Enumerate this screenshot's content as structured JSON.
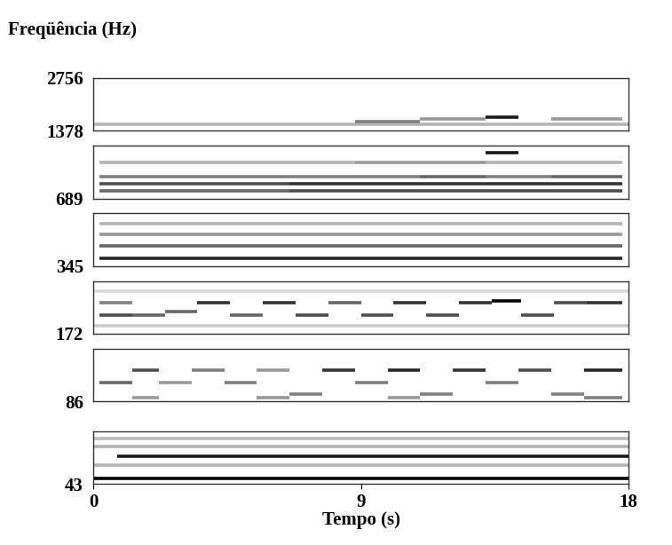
{
  "chart_data": {
    "type": "spectrogram",
    "y_label": "Freqüência (Hz)",
    "x_label": "Tempo (s)",
    "log": "y",
    "xlim": [
      0,
      18
    ],
    "xticks": [
      0,
      9,
      18
    ],
    "panels": [
      {
        "ylim": [
          1378,
          2756
        ],
        "yticks": [
          1378,
          2756
        ],
        "events": [
          [
            0,
            18,
            1500,
            0.3
          ],
          [
            8.8,
            11,
            1550,
            0.5
          ],
          [
            11,
            13.2,
            1600,
            0.4
          ],
          [
            13.2,
            14.3,
            1650,
            0.9
          ],
          [
            15.4,
            17.8,
            1600,
            0.4
          ]
        ]
      },
      {
        "ylim": [
          689,
          1378
        ],
        "yticks": [
          689
        ],
        "events": [
          [
            0.2,
            2.2,
            760,
            0.6
          ],
          [
            0.2,
            2.2,
            840,
            0.7
          ],
          [
            0.2,
            2.2,
            920,
            0.5
          ],
          [
            0.2,
            2.2,
            1100,
            0.3
          ],
          [
            2.2,
            4.4,
            760,
            0.6
          ],
          [
            2.2,
            4.4,
            840,
            0.7
          ],
          [
            2.2,
            4.4,
            920,
            0.5
          ],
          [
            2.2,
            4.4,
            1100,
            0.3
          ],
          [
            4.4,
            6.6,
            760,
            0.6
          ],
          [
            4.4,
            6.6,
            840,
            0.7
          ],
          [
            4.4,
            6.6,
            920,
            0.5
          ],
          [
            4.4,
            6.6,
            1100,
            0.3
          ],
          [
            6.6,
            8.8,
            760,
            0.7
          ],
          [
            6.6,
            8.8,
            840,
            0.8
          ],
          [
            6.6,
            8.8,
            920,
            0.5
          ],
          [
            6.6,
            8.8,
            1100,
            0.3
          ],
          [
            8.8,
            11,
            760,
            0.7
          ],
          [
            8.8,
            11,
            840,
            0.8
          ],
          [
            8.8,
            11,
            920,
            0.5
          ],
          [
            8.8,
            11,
            1100,
            0.4
          ],
          [
            11,
            13.2,
            760,
            0.7
          ],
          [
            11,
            13.2,
            840,
            0.8
          ],
          [
            11,
            13.2,
            920,
            0.6
          ],
          [
            11,
            13.2,
            1100,
            0.4
          ],
          [
            13.2,
            14.3,
            1250,
            0.9
          ],
          [
            13.2,
            15.4,
            760,
            0.7
          ],
          [
            13.2,
            15.4,
            840,
            0.8
          ],
          [
            13.2,
            15.4,
            920,
            0.5
          ],
          [
            13.2,
            15.4,
            1100,
            0.3
          ],
          [
            15.4,
            17.8,
            760,
            0.7
          ],
          [
            15.4,
            17.8,
            840,
            0.8
          ],
          [
            15.4,
            17.8,
            920,
            0.6
          ],
          [
            15.4,
            17.8,
            1100,
            0.3
          ]
        ]
      },
      {
        "ylim": [
          345,
          689
        ],
        "yticks": [
          345
        ],
        "events": [
          [
            0.2,
            2.2,
            380,
            0.85
          ],
          [
            0.2,
            2.2,
            450,
            0.6
          ],
          [
            0.2,
            2.2,
            520,
            0.4
          ],
          [
            0.2,
            2.2,
            600,
            0.3
          ],
          [
            2.2,
            4.4,
            380,
            0.85
          ],
          [
            2.2,
            4.4,
            450,
            0.6
          ],
          [
            2.2,
            4.4,
            520,
            0.4
          ],
          [
            2.2,
            4.4,
            600,
            0.3
          ],
          [
            4.4,
            6.6,
            380,
            0.85
          ],
          [
            4.4,
            6.6,
            450,
            0.6
          ],
          [
            4.4,
            6.6,
            520,
            0.4
          ],
          [
            4.4,
            6.6,
            600,
            0.3
          ],
          [
            6.6,
            8.8,
            380,
            0.85
          ],
          [
            6.6,
            8.8,
            450,
            0.6
          ],
          [
            6.6,
            8.8,
            520,
            0.4
          ],
          [
            6.6,
            8.8,
            600,
            0.3
          ],
          [
            8.8,
            11,
            380,
            0.85
          ],
          [
            8.8,
            11,
            450,
            0.6
          ],
          [
            8.8,
            11,
            520,
            0.4
          ],
          [
            8.8,
            11,
            600,
            0.3
          ],
          [
            11,
            13.2,
            380,
            0.85
          ],
          [
            11,
            13.2,
            450,
            0.6
          ],
          [
            11,
            13.2,
            520,
            0.4
          ],
          [
            11,
            13.2,
            600,
            0.3
          ],
          [
            13.2,
            15.4,
            380,
            0.85
          ],
          [
            13.2,
            15.4,
            450,
            0.6
          ],
          [
            13.2,
            15.4,
            520,
            0.4
          ],
          [
            13.2,
            15.4,
            600,
            0.3
          ],
          [
            15.4,
            17.8,
            380,
            0.85
          ],
          [
            15.4,
            17.8,
            450,
            0.6
          ],
          [
            15.4,
            17.8,
            520,
            0.4
          ],
          [
            15.4,
            17.8,
            600,
            0.3
          ]
        ]
      },
      {
        "ylim": [
          172,
          345
        ],
        "yticks": [
          172
        ],
        "events": [
          [
            0,
            18,
            300,
            0.15
          ],
          [
            0,
            18,
            190,
            0.2
          ],
          [
            0.2,
            1.3,
            220,
            0.7
          ],
          [
            0.2,
            1.3,
            260,
            0.5
          ],
          [
            1.3,
            2.4,
            220,
            0.6
          ],
          [
            2.4,
            3.5,
            230,
            0.6
          ],
          [
            3.5,
            4.6,
            260,
            0.8
          ],
          [
            4.6,
            5.7,
            220,
            0.6
          ],
          [
            5.7,
            6.8,
            260,
            0.8
          ],
          [
            6.8,
            7.9,
            220,
            0.7
          ],
          [
            7.9,
            9,
            260,
            0.6
          ],
          [
            9,
            10.1,
            220,
            0.7
          ],
          [
            10.1,
            11.2,
            260,
            0.8
          ],
          [
            11.2,
            12.3,
            220,
            0.7
          ],
          [
            12.3,
            13.4,
            260,
            0.8
          ],
          [
            13.4,
            14.4,
            265,
            1.0
          ],
          [
            14.4,
            15.5,
            220,
            0.7
          ],
          [
            15.5,
            16.6,
            260,
            0.7
          ],
          [
            16.6,
            17.8,
            260,
            0.8
          ]
        ]
      },
      {
        "ylim": [
          86,
          172
        ],
        "yticks": [
          86
        ],
        "events": [
          [
            0.2,
            1.3,
            110,
            0.6
          ],
          [
            1.3,
            2.2,
            130,
            0.7
          ],
          [
            2.2,
            3.3,
            110,
            0.4
          ],
          [
            3.3,
            4.4,
            130,
            0.5
          ],
          [
            4.4,
            5.5,
            110,
            0.5
          ],
          [
            5.5,
            6.6,
            130,
            0.4
          ],
          [
            6.6,
            7.7,
            95,
            0.5
          ],
          [
            7.7,
            8.8,
            130,
            0.8
          ],
          [
            8.8,
            9.9,
            110,
            0.5
          ],
          [
            9.9,
            11,
            130,
            0.85
          ],
          [
            11,
            12.1,
            95,
            0.5
          ],
          [
            12.1,
            13.2,
            130,
            0.8
          ],
          [
            13.2,
            14.3,
            110,
            0.5
          ],
          [
            14.3,
            15.4,
            130,
            0.7
          ],
          [
            15.4,
            16.5,
            95,
            0.5
          ],
          [
            16.5,
            17.8,
            130,
            0.85
          ],
          [
            1.3,
            2.2,
            90,
            0.4
          ],
          [
            5.5,
            6.6,
            90,
            0.4
          ],
          [
            9.9,
            11,
            90,
            0.4
          ],
          [
            16.5,
            17.8,
            90,
            0.5
          ]
        ]
      },
      {
        "ylim": [
          43,
          86
        ],
        "yticks": [
          43
        ],
        "events": [
          [
            0,
            18,
            46,
            1.0
          ],
          [
            0.8,
            18,
            62,
            0.9
          ],
          [
            0,
            18,
            55,
            0.3
          ],
          [
            0,
            18,
            70,
            0.3
          ],
          [
            0,
            18,
            78,
            0.25
          ]
        ]
      }
    ]
  }
}
